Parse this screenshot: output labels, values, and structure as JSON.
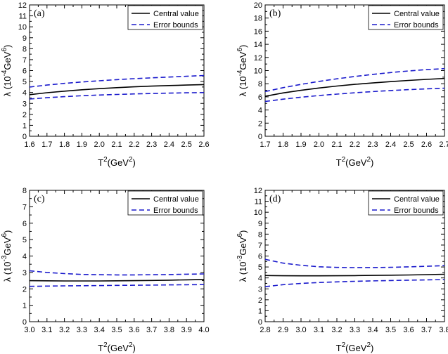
{
  "chart_data": [
    {
      "type": "line",
      "panel_label": "(a)",
      "xlabel": {
        "base": "T",
        "sup": "2",
        "unit_open": "(GeV",
        "unit_sup": "2",
        "unit_close": ")"
      },
      "ylabel": {
        "prefix": "λ (10",
        "exp": "-4",
        "mid": "GeV",
        "exp2": "6",
        "suffix": ")"
      },
      "xlim": [
        1.6,
        2.6
      ],
      "ylim": [
        0,
        12
      ],
      "xticks": [
        "1.6",
        "1.7",
        "1.8",
        "1.9",
        "2.0",
        "2.1",
        "2.2",
        "2.3",
        "2.4",
        "2.5",
        "2.6"
      ],
      "yticks": [
        "0",
        "1",
        "2",
        "3",
        "4",
        "5",
        "6",
        "7",
        "8",
        "9",
        "10",
        "11",
        "12"
      ],
      "legend": {
        "position": "top-right",
        "entries": [
          "Central value",
          "Error bounds"
        ]
      },
      "series": [
        {
          "name": "Central value",
          "color": "#000000",
          "style": "solid",
          "x": [
            1.6,
            1.7,
            1.8,
            1.9,
            2.0,
            2.1,
            2.2,
            2.3,
            2.4,
            2.5,
            2.6
          ],
          "y": [
            3.8,
            3.98,
            4.12,
            4.25,
            4.35,
            4.44,
            4.52,
            4.58,
            4.63,
            4.68,
            4.72
          ]
        },
        {
          "name": "Error bounds",
          "color": "#1a1acc",
          "style": "dashed",
          "x": [
            1.6,
            1.7,
            1.8,
            1.9,
            2.0,
            2.1,
            2.2,
            2.3,
            2.4,
            2.5,
            2.6
          ],
          "y": [
            4.5,
            4.68,
            4.83,
            4.96,
            5.07,
            5.17,
            5.26,
            5.34,
            5.41,
            5.48,
            5.55
          ]
        },
        {
          "name": "Error bounds",
          "color": "#1a1acc",
          "style": "dashed",
          "x": [
            1.6,
            1.7,
            1.8,
            1.9,
            2.0,
            2.1,
            2.2,
            2.3,
            2.4,
            2.5,
            2.6
          ],
          "y": [
            3.4,
            3.52,
            3.62,
            3.7,
            3.77,
            3.82,
            3.87,
            3.91,
            3.94,
            3.97,
            3.99
          ]
        }
      ]
    },
    {
      "type": "line",
      "panel_label": "(b)",
      "xlabel": {
        "base": "T",
        "sup": "2",
        "unit_open": "(GeV",
        "unit_sup": "2",
        "unit_close": ")"
      },
      "ylabel": {
        "prefix": "λ (10",
        "exp": "-4",
        "mid": "GeV",
        "exp2": "6",
        "suffix": ")"
      },
      "xlim": [
        1.7,
        2.7
      ],
      "ylim": [
        0,
        20
      ],
      "xticks": [
        "1.7",
        "1.8",
        "1.9",
        "2.0",
        "2.1",
        "2.2",
        "2.3",
        "2.4",
        "2.5",
        "2.6",
        "2.7"
      ],
      "yticks": [
        "0",
        "2",
        "4",
        "6",
        "8",
        "10",
        "12",
        "14",
        "16",
        "18",
        "20"
      ],
      "legend": {
        "position": "top-right",
        "entries": [
          "Central value",
          "Error bounds"
        ]
      },
      "series": [
        {
          "name": "Central value",
          "color": "#000000",
          "style": "solid",
          "x": [
            1.7,
            1.8,
            1.9,
            2.0,
            2.1,
            2.2,
            2.3,
            2.4,
            2.5,
            2.6,
            2.7
          ],
          "y": [
            6.1,
            6.6,
            7.0,
            7.35,
            7.65,
            7.9,
            8.12,
            8.32,
            8.5,
            8.66,
            8.8
          ]
        },
        {
          "name": "Error bounds",
          "color": "#1a1acc",
          "style": "dashed",
          "x": [
            1.7,
            1.8,
            1.9,
            2.0,
            2.1,
            2.2,
            2.3,
            2.4,
            2.5,
            2.6,
            2.7
          ],
          "y": [
            6.8,
            7.4,
            7.9,
            8.35,
            8.75,
            9.1,
            9.42,
            9.7,
            9.95,
            10.15,
            10.3
          ]
        },
        {
          "name": "Error bounds",
          "color": "#1a1acc",
          "style": "dashed",
          "x": [
            1.7,
            1.8,
            1.9,
            2.0,
            2.1,
            2.2,
            2.3,
            2.4,
            2.5,
            2.6,
            2.7
          ],
          "y": [
            5.3,
            5.65,
            5.95,
            6.2,
            6.42,
            6.62,
            6.8,
            6.96,
            7.1,
            7.22,
            7.32
          ]
        }
      ]
    },
    {
      "type": "line",
      "panel_label": "(c)",
      "xlabel": {
        "base": "T",
        "sup": "2",
        "unit_open": "(GeV",
        "unit_sup": "2",
        "unit_close": ")"
      },
      "ylabel": {
        "prefix": "λ (10",
        "exp": "-3",
        "mid": "GeV",
        "exp2": "6",
        "suffix": ")"
      },
      "xlim": [
        3.0,
        4.0
      ],
      "ylim": [
        0,
        8
      ],
      "xticks": [
        "3.0",
        "3.1",
        "3.2",
        "3.3",
        "3.4",
        "3.5",
        "3.6",
        "3.7",
        "3.8",
        "3.9",
        "4.0"
      ],
      "yticks": [
        "0",
        "1",
        "2",
        "3",
        "4",
        "5",
        "6",
        "7",
        "8"
      ],
      "legend": {
        "position": "top-right",
        "entries": [
          "Central value",
          "Error bounds"
        ]
      },
      "series": [
        {
          "name": "Central value",
          "color": "#000000",
          "style": "solid",
          "x": [
            3.0,
            3.1,
            3.2,
            3.3,
            3.4,
            3.5,
            3.6,
            3.7,
            3.8,
            3.9,
            4.0
          ],
          "y": [
            2.5,
            2.49,
            2.48,
            2.48,
            2.48,
            2.49,
            2.5,
            2.51,
            2.53,
            2.55,
            2.57
          ]
        },
        {
          "name": "Error bounds",
          "color": "#1a1acc",
          "style": "dashed",
          "x": [
            3.0,
            3.1,
            3.2,
            3.3,
            3.4,
            3.5,
            3.6,
            3.7,
            3.8,
            3.9,
            4.0
          ],
          "y": [
            3.1,
            3.0,
            2.93,
            2.88,
            2.86,
            2.85,
            2.85,
            2.86,
            2.87,
            2.89,
            2.91
          ]
        },
        {
          "name": "Error bounds",
          "color": "#1a1acc",
          "style": "dashed",
          "x": [
            3.0,
            3.1,
            3.2,
            3.3,
            3.4,
            3.5,
            3.6,
            3.7,
            3.8,
            3.9,
            4.0
          ],
          "y": [
            2.15,
            2.17,
            2.18,
            2.19,
            2.2,
            2.21,
            2.22,
            2.23,
            2.24,
            2.25,
            2.26
          ]
        }
      ]
    },
    {
      "type": "line",
      "panel_label": "(d)",
      "xlabel": {
        "base": "T",
        "sup": "2",
        "unit_open": "(GeV",
        "unit_sup": "2",
        "unit_close": ")"
      },
      "ylabel": {
        "prefix": "λ (10",
        "exp": "-3",
        "mid": "GeV",
        "exp2": "6",
        "suffix": ")"
      },
      "xlim": [
        2.8,
        3.8
      ],
      "ylim": [
        0,
        12
      ],
      "xticks": [
        "2.8",
        "2.9",
        "3.0",
        "3.1",
        "3.2",
        "3.3",
        "3.4",
        "3.5",
        "3.6",
        "3.7",
        "3.8"
      ],
      "yticks": [
        "0",
        "1",
        "2",
        "3",
        "4",
        "5",
        "6",
        "7",
        "8",
        "9",
        "10",
        "11",
        "12"
      ],
      "legend": {
        "position": "top-right",
        "entries": [
          "Central value",
          "Error bounds"
        ]
      },
      "series": [
        {
          "name": "Central value",
          "color": "#000000",
          "style": "solid",
          "x": [
            2.8,
            2.9,
            3.0,
            3.1,
            3.2,
            3.3,
            3.4,
            3.5,
            3.6,
            3.7,
            3.8
          ],
          "y": [
            4.22,
            4.2,
            4.19,
            4.19,
            4.2,
            4.21,
            4.23,
            4.25,
            4.27,
            4.3,
            4.33
          ]
        },
        {
          "name": "Error bounds",
          "color": "#1a1acc",
          "style": "dashed",
          "x": [
            2.8,
            2.9,
            3.0,
            3.1,
            3.2,
            3.3,
            3.4,
            3.5,
            3.6,
            3.7,
            3.8
          ],
          "y": [
            5.7,
            5.35,
            5.15,
            5.02,
            4.96,
            4.94,
            4.95,
            4.97,
            5.01,
            5.06,
            5.12
          ]
        },
        {
          "name": "Error bounds",
          "color": "#1a1acc",
          "style": "dashed",
          "x": [
            2.8,
            2.9,
            3.0,
            3.1,
            3.2,
            3.3,
            3.4,
            3.5,
            3.6,
            3.7,
            3.8
          ],
          "y": [
            3.2,
            3.38,
            3.5,
            3.58,
            3.64,
            3.69,
            3.73,
            3.76,
            3.79,
            3.82,
            3.85
          ]
        }
      ]
    }
  ]
}
